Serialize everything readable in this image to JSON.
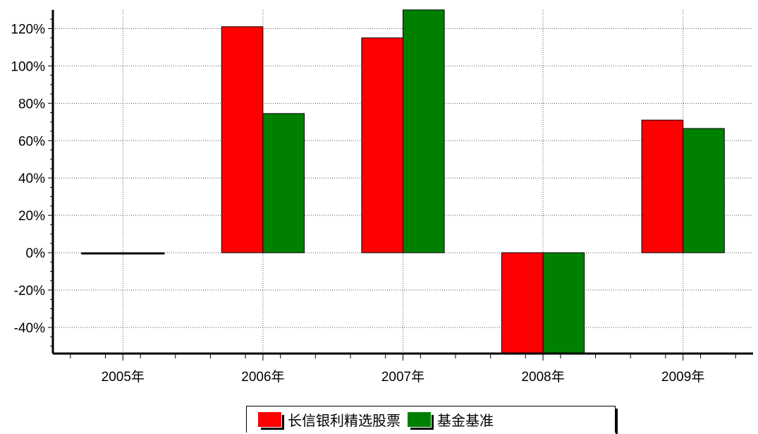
{
  "chart_data": {
    "type": "bar",
    "categories": [
      "2005年",
      "2006年",
      "2007年",
      "2008年",
      "2009年"
    ],
    "series": [
      {
        "name": "长信银利精选股票",
        "color": "#ff0000",
        "values": [
          -0.8,
          121,
          115,
          -53.8,
          71
        ]
      },
      {
        "name": "基金基准",
        "color": "#008000",
        "values": [
          -0.3,
          74.5,
          130,
          -53.8,
          66.5
        ]
      }
    ],
    "yticks": [
      -40,
      -20,
      0,
      20,
      40,
      60,
      80,
      100,
      120
    ],
    "ytick_labels": [
      "-40%",
      "-20%",
      "0%",
      "20%",
      "40%",
      "60%",
      "80%",
      "100%",
      "120%"
    ],
    "ylim": [
      -54,
      130
    ],
    "grid": true,
    "legend_position": "bottom-center"
  }
}
